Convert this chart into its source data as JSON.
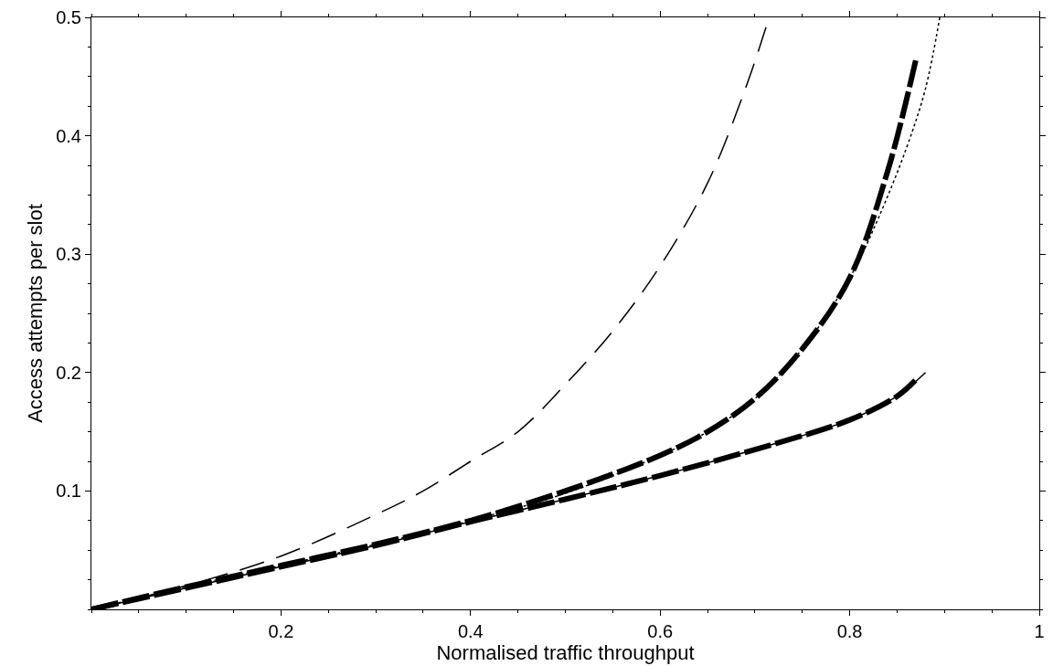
{
  "chart_data": {
    "type": "line",
    "xlabel": "Normalised traffic throughput",
    "ylabel": "Access attempts per slot",
    "xlim": [
      0,
      1
    ],
    "ylim": [
      0,
      0.5
    ],
    "xticks": [
      0.2,
      0.4,
      0.6,
      0.8,
      1
    ],
    "yticks": [
      0.1,
      0.2,
      0.3,
      0.4,
      0.5
    ],
    "marker": "none",
    "series": [
      {
        "color": "#000000",
        "line_style": "solid",
        "x": [
          0,
          0.1,
          0.2,
          0.3,
          0.4,
          0.5,
          0.6,
          0.7,
          0.8,
          0.85,
          0.88
        ],
        "values": [
          0,
          0.018,
          0.036,
          0.054,
          0.074,
          0.093,
          0.113,
          0.135,
          0.16,
          0.18,
          0.2
        ]
      },
      {
        "color": "#000000",
        "line_style": "dotted",
        "x": [
          0,
          0.1,
          0.2,
          0.3,
          0.4,
          0.5,
          0.6,
          0.65,
          0.7,
          0.75,
          0.8,
          0.83,
          0.86,
          0.88,
          0.895
        ],
        "values": [
          0,
          0.019,
          0.037,
          0.055,
          0.075,
          0.098,
          0.13,
          0.15,
          0.178,
          0.22,
          0.28,
          0.33,
          0.39,
          0.44,
          0.5
        ]
      },
      {
        "color": "#000000",
        "line_style": "dashed",
        "x": [
          0,
          0.1,
          0.2,
          0.3,
          0.4,
          0.5,
          0.6,
          0.65,
          0.7,
          0.75,
          0.8,
          0.84,
          0.87
        ],
        "values": [
          0,
          0.019,
          0.037,
          0.055,
          0.075,
          0.1,
          0.13,
          0.15,
          0.178,
          0.22,
          0.28,
          0.37,
          0.465
        ]
      },
      {
        "color": "#000000",
        "line_style": "dashed",
        "x": [
          0,
          0.1,
          0.2,
          0.3,
          0.35,
          0.4,
          0.45,
          0.5,
          0.55,
          0.6,
          0.65,
          0.69,
          0.715
        ],
        "values": [
          0,
          0.02,
          0.045,
          0.08,
          0.1,
          0.125,
          0.15,
          0.19,
          0.235,
          0.29,
          0.36,
          0.44,
          0.5
        ]
      },
      {
        "color": "#000000",
        "line_style": "dashed",
        "x": [
          0,
          0.1,
          0.2,
          0.3,
          0.4,
          0.5,
          0.6,
          0.7,
          0.8,
          0.85,
          0.87
        ],
        "values": [
          0,
          0.018,
          0.036,
          0.054,
          0.074,
          0.093,
          0.113,
          0.135,
          0.16,
          0.18,
          0.194
        ]
      }
    ]
  }
}
